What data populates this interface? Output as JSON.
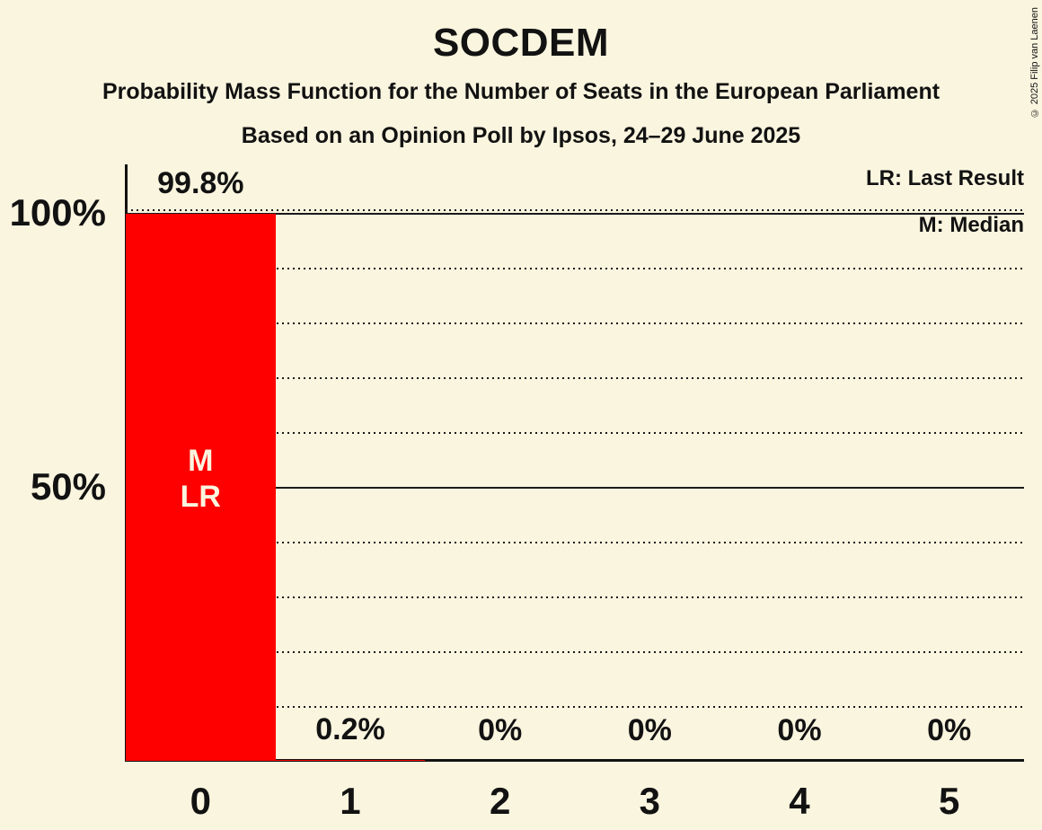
{
  "title": "SOCDEM",
  "subtitles": [
    "Probability Mass Function for the Number of Seats in the European Parliament",
    "Based on an Opinion Poll by Ipsos, 24–29 June 2025"
  ],
  "copyright": "© 2025 Filip van Laenen",
  "legend": {
    "last_result": "LR: Last Result",
    "median": "M: Median"
  },
  "colors": {
    "background": "#FAF5DF",
    "bar": "#FF0000",
    "text": "#121212",
    "bar_annotation_text": "#FAF5DF"
  },
  "chart_data": {
    "type": "bar",
    "title": "SOCDEM",
    "categories": [
      "0",
      "1",
      "2",
      "3",
      "4",
      "5"
    ],
    "values": [
      99.8,
      0.2,
      0,
      0,
      0,
      0
    ],
    "value_labels": [
      "99.8%",
      "0.2%",
      "0%",
      "0%",
      "0%",
      "0%"
    ],
    "xlabel": "",
    "ylabel": "",
    "ylim": [
      0,
      100
    ],
    "y_ticks": [
      {
        "value": 100,
        "label": "100%"
      },
      {
        "value": 50,
        "label": "50%"
      }
    ],
    "gridlines": {
      "dotted_step": 10,
      "solid_at": [
        50,
        100
      ]
    },
    "legend_position": "top-right",
    "annotations": [
      {
        "category": "0",
        "lines": [
          "M",
          "LR"
        ]
      }
    ]
  }
}
